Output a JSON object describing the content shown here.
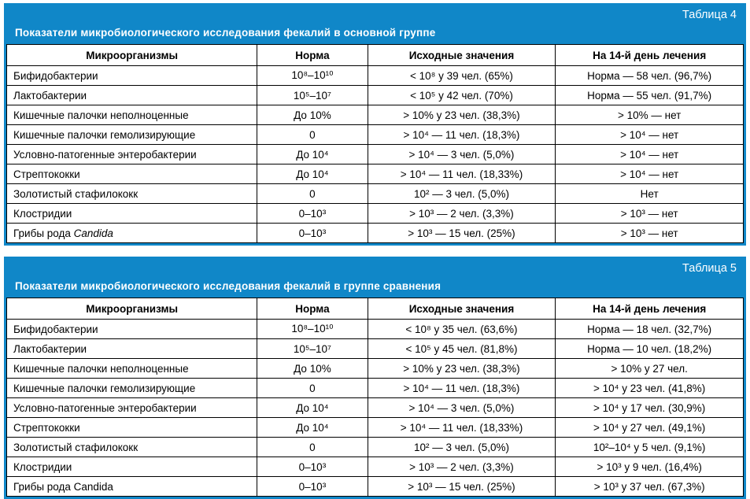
{
  "page": {
    "accent_color": "#1087c8",
    "background": "#ffffff"
  },
  "columns": [
    "Микроорганизмы",
    "Норма",
    "Исходные значения",
    "На 14-й день лечения"
  ],
  "tables": [
    {
      "label": "Таблица 4",
      "title": "Показатели микробиологического исследования фекалий в основной группе",
      "rows": [
        {
          "name": "Бифидобактерии",
          "norm": "10⁸–10¹⁰",
          "initial": "< 10⁸ у 39 чел. (65%)",
          "day14": "Норма — 58 чел. (96,7%)"
        },
        {
          "name": "Лактобактерии",
          "norm": "10⁵–10⁷",
          "initial": "< 10⁵ у 42 чел. (70%)",
          "day14": "Норма — 55 чел. (91,7%)"
        },
        {
          "name": "Кишечные палочки неполноценные",
          "norm": "До 10%",
          "initial": "> 10% у 23 чел. (38,3%)",
          "day14": "> 10% — нет"
        },
        {
          "name": "Кишечные палочки гемолизирующие",
          "norm": "0",
          "initial": "> 10⁴ — 11 чел. (18,3%)",
          "day14": "> 10⁴ — нет"
        },
        {
          "name": "Условно-патогенные энтеробактерии",
          "norm": "До 10⁴",
          "initial": "> 10⁴ — 3 чел. (5,0%)",
          "day14": "> 10⁴ — нет"
        },
        {
          "name": "Стрептококки",
          "norm": "До 10⁴",
          "initial": "> 10⁴ — 11 чел. (18,33%)",
          "day14": "> 10⁴ — нет"
        },
        {
          "name": "Золотистый стафилококк",
          "norm": "0",
          "initial": "10² — 3 чел. (5,0%)",
          "day14": "Нет"
        },
        {
          "name": "Клостридии",
          "norm": "0–10³",
          "initial": "> 10³ — 2 чел. (3,3%)",
          "day14": "> 10³ — нет"
        },
        {
          "name": "Грибы рода ",
          "name_em": "Candida",
          "norm": "0–10³",
          "initial": "> 10³ — 15 чел. (25%)",
          "day14": "> 10³ — нет"
        }
      ]
    },
    {
      "label": "Таблица 5",
      "title": "Показатели микробиологического исследования фекалий в группе сравнения",
      "rows": [
        {
          "name": "Бифидобактерии",
          "norm": "10⁸–10¹⁰",
          "initial": "< 10⁸ у 35 чел. (63,6%)",
          "day14": "Норма — 18 чел. (32,7%)"
        },
        {
          "name": "Лактобактерии",
          "norm": "10⁵–10⁷",
          "initial": "< 10⁵ у 45 чел. (81,8%)",
          "day14": "Норма — 10 чел. (18,2%)"
        },
        {
          "name": "Кишечные палочки неполноценные",
          "norm": "До 10%",
          "initial": "> 10% у 23 чел. (38,3%)",
          "day14": "> 10% у 27 чел."
        },
        {
          "name": "Кишечные палочки гемолизирующие",
          "norm": "0",
          "initial": "> 10⁴ — 11 чел. (18,3%)",
          "day14": "> 10⁴ у 23 чел. (41,8%)"
        },
        {
          "name": "Условно-патогенные энтеробактерии",
          "norm": "До 10⁴",
          "initial": "> 10⁴ — 3 чел. (5,0%)",
          "day14": "> 10⁴ у 17 чел. (30,9%)"
        },
        {
          "name": "Стрептококки",
          "norm": "До 10⁴",
          "initial": "> 10⁴ — 11 чел. (18,33%)",
          "day14": "> 10⁴ у 27 чел. (49,1%)"
        },
        {
          "name": "Золотистый стафилококк",
          "norm": "0",
          "initial": "10² — 3 чел. (5,0%)",
          "day14": "10²–10⁴ у 5 чел. (9,1%)"
        },
        {
          "name": "Клостридии",
          "norm": "0–10³",
          "initial": "> 10³ — 2 чел. (3,3%)",
          "day14": "> 10³ у 9 чел. (16,4%)"
        },
        {
          "name": "Грибы рода Candida",
          "norm": "0–10³",
          "initial": "> 10³ — 15 чел. (25%)",
          "day14": "> 10³ у 37 чел. (67,3%)"
        }
      ]
    }
  ]
}
